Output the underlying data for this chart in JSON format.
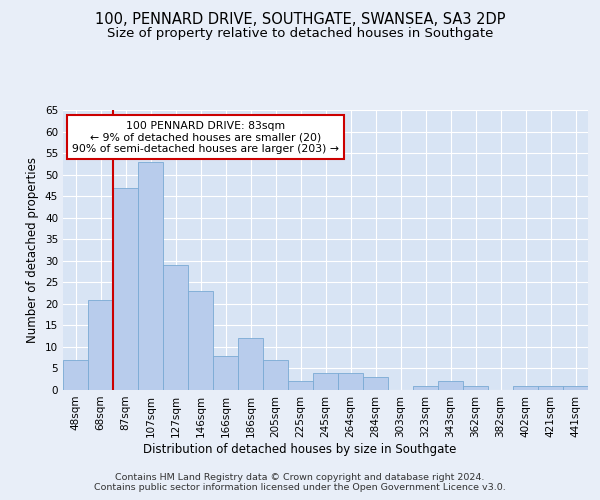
{
  "title": "100, PENNARD DRIVE, SOUTHGATE, SWANSEA, SA3 2DP",
  "subtitle": "Size of property relative to detached houses in Southgate",
  "xlabel": "Distribution of detached houses by size in Southgate",
  "ylabel": "Number of detached properties",
  "categories": [
    "48sqm",
    "68sqm",
    "87sqm",
    "107sqm",
    "127sqm",
    "146sqm",
    "166sqm",
    "186sqm",
    "205sqm",
    "225sqm",
    "245sqm",
    "264sqm",
    "284sqm",
    "303sqm",
    "323sqm",
    "343sqm",
    "362sqm",
    "382sqm",
    "402sqm",
    "421sqm",
    "441sqm"
  ],
  "values": [
    7,
    21,
    47,
    53,
    29,
    23,
    8,
    12,
    7,
    2,
    4,
    4,
    3,
    0,
    1,
    2,
    1,
    0,
    1,
    1,
    1
  ],
  "bar_color": "#b8ccec",
  "bar_edge_color": "#7aaad4",
  "red_line_x": 1.5,
  "annotation_text": "100 PENNARD DRIVE: 83sqm\n← 9% of detached houses are smaller (20)\n90% of semi-detached houses are larger (203) →",
  "annotation_box_color": "#ffffff",
  "annotation_box_edge": "#cc0000",
  "ylim": [
    0,
    65
  ],
  "yticks": [
    0,
    5,
    10,
    15,
    20,
    25,
    30,
    35,
    40,
    45,
    50,
    55,
    60,
    65
  ],
  "footer_text": "Contains HM Land Registry data © Crown copyright and database right 2024.\nContains public sector information licensed under the Open Government Licence v3.0.",
  "bg_color": "#e8eef8",
  "plot_bg_color": "#d8e4f4",
  "grid_color": "#ffffff",
  "title_fontsize": 10.5,
  "subtitle_fontsize": 9.5,
  "axis_label_fontsize": 8.5,
  "tick_fontsize": 7.5,
  "footer_fontsize": 6.8,
  "annot_fontsize": 7.8
}
